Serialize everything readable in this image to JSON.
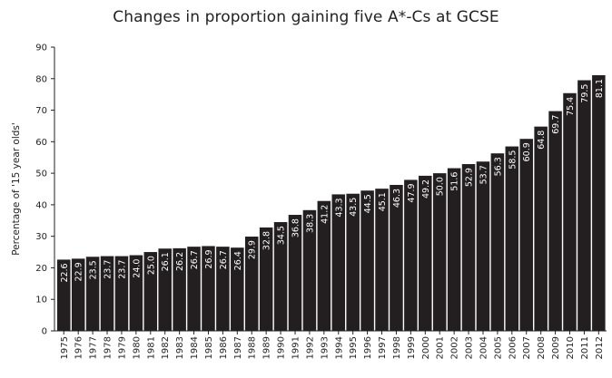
{
  "chart_data": {
    "type": "bar",
    "title": "Changes in proportion gaining five A*-Cs at GCSE",
    "xlabel": "",
    "ylabel": "Percentage of '15 year olds'",
    "ylim": [
      0,
      90
    ],
    "yticks": [
      0,
      10,
      20,
      30,
      40,
      50,
      60,
      70,
      80,
      90
    ],
    "grid": false,
    "bar_color": "#231f20",
    "categories": [
      "1975",
      "1976",
      "1977",
      "1978",
      "1979",
      "1980",
      "1981",
      "1982",
      "1983",
      "1984",
      "1985",
      "1986",
      "1987",
      "1988",
      "1989",
      "1990",
      "1991",
      "1992",
      "1993",
      "1994",
      "1995",
      "1996",
      "1997",
      "1998",
      "1999",
      "2000",
      "2001",
      "2002",
      "2003",
      "2004",
      "2005",
      "2006",
      "2007",
      "2008",
      "2009",
      "2010",
      "2011",
      "2012"
    ],
    "values": [
      22.6,
      22.9,
      23.5,
      23.7,
      23.7,
      24.0,
      25.0,
      26.1,
      26.2,
      26.7,
      26.9,
      26.7,
      26.4,
      29.9,
      32.8,
      34.5,
      36.8,
      38.3,
      41.2,
      43.3,
      43.5,
      44.5,
      45.1,
      46.3,
      47.9,
      49.2,
      50.0,
      51.6,
      52.9,
      53.7,
      56.3,
      58.5,
      60.9,
      64.8,
      69.7,
      75.4,
      79.5,
      81.1
    ],
    "value_labels": [
      "22.6",
      "22.9",
      "23.5",
      "23.7",
      "23.7",
      "24.0",
      "25.0",
      "26.1",
      "26.2",
      "26.7",
      "26.9",
      "26.7",
      "26.4",
      "29.9",
      "32.8",
      "34.5",
      "36.8",
      "38.3",
      "41.2",
      "43.3",
      "43.5",
      "44.5",
      "45.1",
      "46.3",
      "47.9",
      "49.2",
      "50.0",
      "51.6",
      "52.9",
      "53.7",
      "56.3",
      "58.5",
      "60.9",
      "64.8",
      "69.7",
      "75.4",
      "79.5",
      "81.1"
    ]
  }
}
